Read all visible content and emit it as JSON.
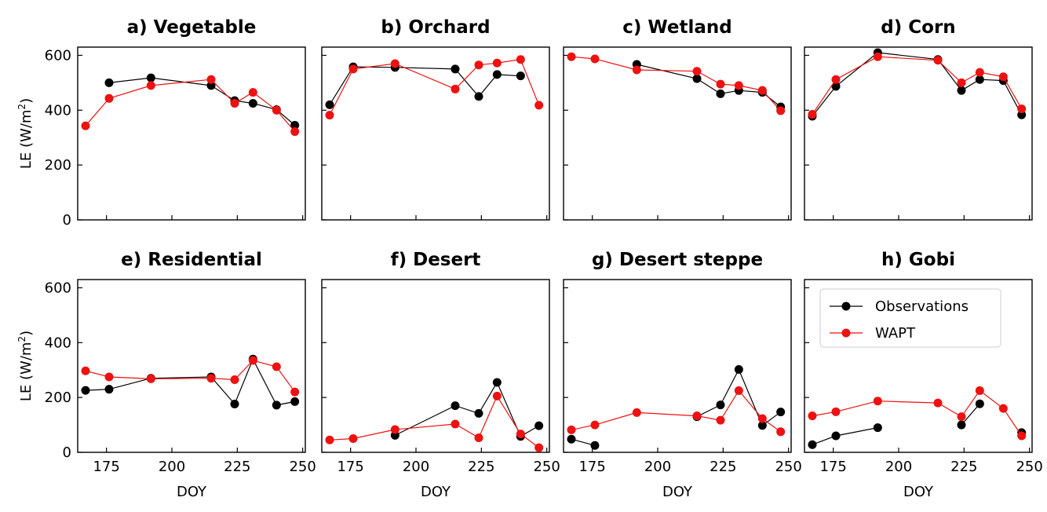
{
  "figure": {
    "colors": {
      "observations": "#000000",
      "wapt": "#ee1111"
    },
    "legend": {
      "observations": "Observations",
      "wapt": "WAPT",
      "placement": "top-right of panel h"
    },
    "x_ticks": [
      175,
      200,
      225,
      250
    ],
    "y_ticks": [
      0,
      200,
      400,
      600
    ],
    "xlim": [
      164,
      251
    ],
    "ylim": [
      0,
      630
    ],
    "xlabel": "DOY",
    "ylabel": "LE (W/m",
    "ylabel_sup": "2",
    "ylabel_close": ")"
  },
  "chart_data": [
    {
      "type": "line",
      "title": "a) Vegetable",
      "series": [
        {
          "name": "Observations",
          "x": [
            176,
            192,
            215,
            224,
            231,
            240,
            247
          ],
          "y": [
            500,
            518,
            490,
            435,
            425,
            402,
            345
          ]
        },
        {
          "name": "WAPT",
          "x": [
            167,
            176,
            192,
            215,
            224,
            231,
            240,
            247
          ],
          "y": [
            343,
            443,
            490,
            512,
            425,
            465,
            400,
            322
          ]
        }
      ]
    },
    {
      "type": "line",
      "title": "b) Orchard",
      "series": [
        {
          "name": "Observations",
          "x": [
            167,
            176,
            192,
            215,
            224,
            231,
            240
          ],
          "y": [
            420,
            558,
            556,
            550,
            450,
            530,
            525
          ]
        },
        {
          "name": "WAPT",
          "x": [
            167,
            176,
            192,
            215,
            224,
            231,
            240,
            247
          ],
          "y": [
            382,
            550,
            570,
            477,
            565,
            572,
            585,
            418
          ]
        }
      ]
    },
    {
      "type": "line",
      "title": "c) Wetland",
      "series": [
        {
          "name": "Observations",
          "x": [
            192,
            215,
            224,
            231,
            240,
            247
          ],
          "y": [
            567,
            515,
            460,
            472,
            465,
            412
          ]
        },
        {
          "name": "WAPT",
          "x": [
            167,
            176,
            192,
            215,
            224,
            231,
            240,
            247
          ],
          "y": [
            595,
            587,
            547,
            542,
            495,
            490,
            472,
            398
          ]
        }
      ]
    },
    {
      "type": "line",
      "title": "d) Corn",
      "series": [
        {
          "name": "Observations",
          "x": [
            167,
            176,
            192,
            215,
            224,
            231,
            240,
            247
          ],
          "y": [
            378,
            487,
            610,
            585,
            472,
            512,
            508,
            383
          ]
        },
        {
          "name": "WAPT",
          "x": [
            167,
            176,
            192,
            215,
            224,
            231,
            240,
            247
          ],
          "y": [
            385,
            512,
            595,
            582,
            500,
            538,
            522,
            405
          ]
        }
      ]
    },
    {
      "type": "line",
      "title": "e) Residential",
      "series": [
        {
          "name": "Observations",
          "x": [
            167,
            176,
            192,
            215,
            224,
            231,
            240,
            247
          ],
          "y": [
            226,
            230,
            270,
            275,
            176,
            340,
            172,
            185
          ]
        },
        {
          "name": "WAPT",
          "x": [
            167,
            176,
            192,
            215,
            224,
            231,
            240,
            247
          ],
          "y": [
            297,
            275,
            268,
            270,
            265,
            335,
            312,
            220
          ]
        }
      ]
    },
    {
      "type": "line",
      "title": "f) Desert",
      "series": [
        {
          "name": "Observations",
          "x": [
            192,
            215,
            224,
            231,
            240,
            247
          ],
          "y": [
            62,
            170,
            142,
            255,
            58,
            97
          ]
        },
        {
          "name": "WAPT",
          "x": [
            167,
            176,
            192,
            215,
            224,
            231,
            240,
            247
          ],
          "y": [
            45,
            50,
            83,
            103,
            53,
            205,
            67,
            17
          ]
        }
      ]
    },
    {
      "type": "line",
      "title": "g) Desert steppe",
      "series": [
        {
          "name": "Observations",
          "x": [
            167,
            176
          ],
          "y": [
            48,
            25
          ]
        },
        {
          "name": "Observations",
          "x": [
            215,
            224,
            231,
            240,
            247
          ],
          "y": [
            130,
            173,
            302,
            98,
            147
          ]
        },
        {
          "name": "WAPT",
          "x": [
            167,
            176,
            192,
            215,
            224,
            231,
            240,
            247
          ],
          "y": [
            82,
            100,
            145,
            133,
            117,
            225,
            123,
            75
          ]
        }
      ]
    },
    {
      "type": "line",
      "title": "h) Gobi",
      "series": [
        {
          "name": "Observations",
          "x": [
            167,
            176,
            192
          ],
          "y": [
            28,
            60,
            90
          ]
        },
        {
          "name": "Observations",
          "x": [
            224,
            231
          ],
          "y": [
            100,
            177
          ]
        },
        {
          "name": "Observations",
          "x": [
            247
          ],
          "y": [
            72
          ]
        },
        {
          "name": "WAPT",
          "x": [
            167,
            176,
            192,
            215,
            224,
            231,
            240,
            247
          ],
          "y": [
            133,
            148,
            187,
            180,
            130,
            225,
            160,
            60
          ]
        }
      ]
    }
  ]
}
